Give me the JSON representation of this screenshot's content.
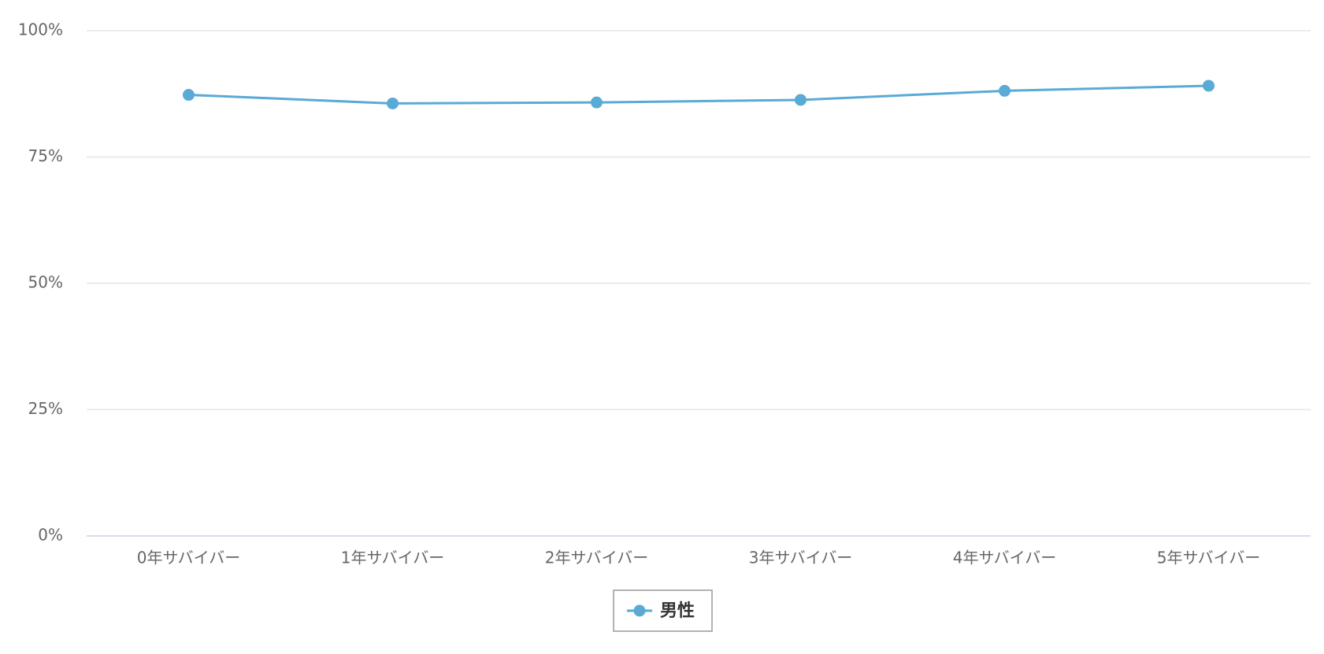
{
  "chart_data": {
    "type": "line",
    "categories": [
      "0年サバイバー",
      "1年サバイバー",
      "2年サバイバー",
      "3年サバイバー",
      "4年サバイバー",
      "5年サバイバー"
    ],
    "series": [
      {
        "name": "男性",
        "color": "#5aaad6",
        "values": [
          87.3,
          85.6,
          85.8,
          86.3,
          88.1,
          89.1
        ]
      }
    ],
    "ylim": [
      0,
      100
    ],
    "yticks": [
      {
        "value": 0,
        "label": "0%"
      },
      {
        "value": 25,
        "label": "25%"
      },
      {
        "value": 50,
        "label": "50%"
      },
      {
        "value": 75,
        "label": "75%"
      },
      {
        "value": 100,
        "label": "100%"
      }
    ],
    "grid": true
  }
}
